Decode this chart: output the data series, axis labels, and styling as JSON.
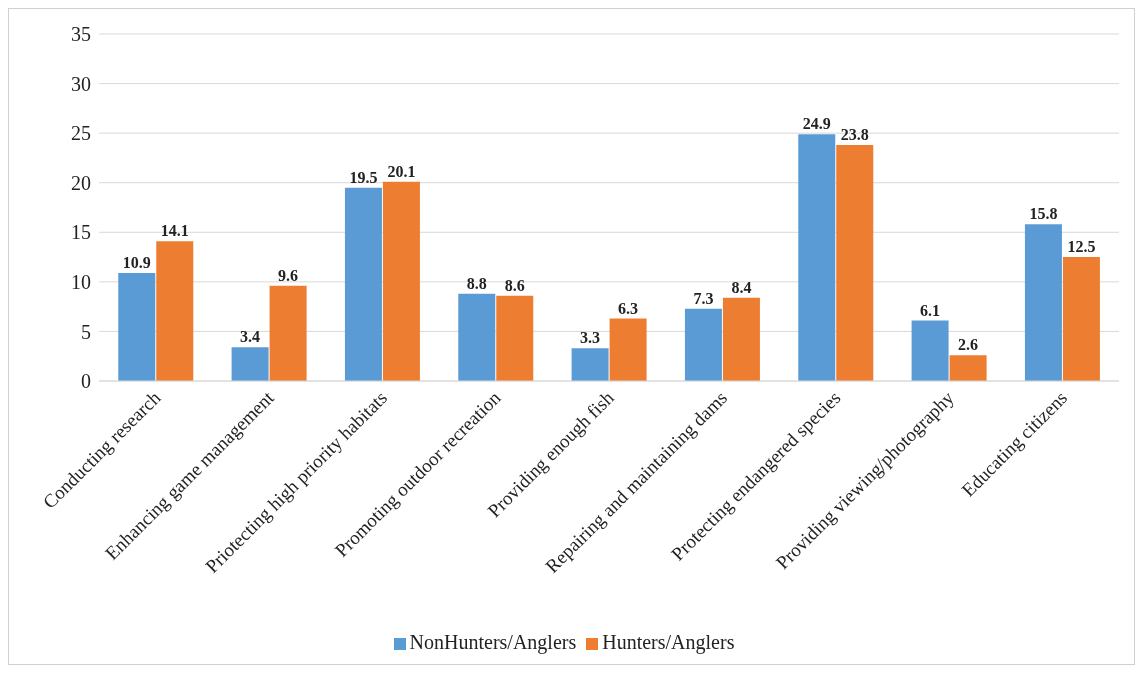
{
  "chart_data": {
    "type": "bar",
    "categories": [
      "Conducting research",
      "Enhancing game management",
      "Priotecting high priority habitats",
      "Promoting outdoor recreation",
      "Providing enough fish",
      "Repairing and maintaining dams",
      "Protecting endangered species",
      "Providing viewing/photography",
      "Educating citizens"
    ],
    "series": [
      {
        "name": "NonHunters/Anglers",
        "color": "#5b9bd5",
        "values": [
          10.9,
          3.4,
          19.5,
          8.8,
          3.3,
          7.3,
          24.9,
          6.1,
          15.8
        ]
      },
      {
        "name": "Hunters/Anglers",
        "color": "#ed7d31",
        "values": [
          14.1,
          9.6,
          20.1,
          8.6,
          6.3,
          8.4,
          23.8,
          2.6,
          12.5
        ]
      }
    ],
    "ylim": [
      0,
      35
    ],
    "yticks": [
      0,
      5,
      10,
      15,
      20,
      25,
      30,
      35
    ],
    "grid": "y",
    "legend": "bottom",
    "data_labels": true
  }
}
